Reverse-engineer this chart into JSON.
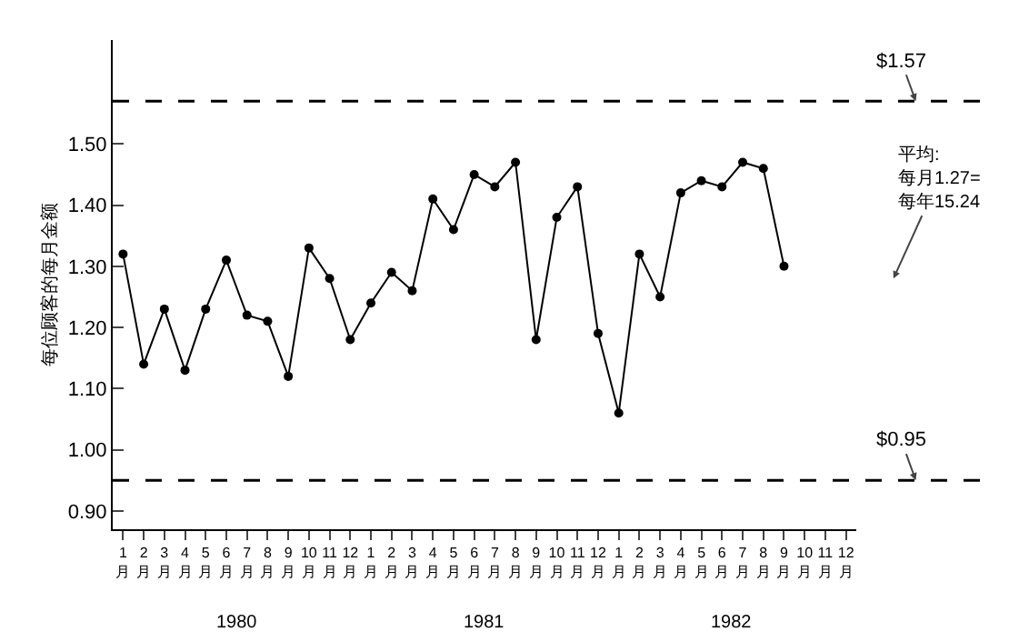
{
  "chart_data": {
    "type": "line",
    "ylabel": "每位顾客的每月金额",
    "categories": [
      "1月",
      "2月",
      "3月",
      "4月",
      "5月",
      "6月",
      "7月",
      "8月",
      "9月",
      "10月",
      "11月",
      "12月",
      "1月",
      "2月",
      "3月",
      "4月",
      "5月",
      "6月",
      "7月",
      "8月",
      "9月",
      "10月",
      "11月",
      "12月",
      "1月",
      "2月",
      "3月",
      "4月",
      "5月",
      "6月",
      "7月",
      "8月",
      "9月",
      "10月",
      "11月",
      "12月"
    ],
    "series": [
      {
        "color": "#000000",
        "values": [
          1.32,
          1.14,
          1.23,
          1.13,
          1.23,
          1.31,
          1.22,
          1.21,
          1.12,
          1.33,
          1.28,
          1.18,
          1.24,
          1.29,
          1.26,
          1.41,
          1.36,
          1.45,
          1.43,
          1.47,
          1.18,
          1.38,
          1.43,
          1.19,
          1.06,
          1.32,
          1.25,
          1.42,
          1.44,
          1.43,
          1.47,
          1.46,
          1.3,
          null,
          null,
          null
        ]
      }
    ],
    "ylim": [
      0.87,
      1.67
    ],
    "yticks": [
      {
        "value": 0.9,
        "label": "0.90"
      },
      {
        "value": 1.0,
        "label": "1.00"
      },
      {
        "value": 1.1,
        "label": "1.10"
      },
      {
        "value": 1.2,
        "label": "1.20"
      },
      {
        "value": 1.3,
        "label": "1.30"
      },
      {
        "value": 1.4,
        "label": "1.40"
      },
      {
        "value": 1.5,
        "label": "1.50"
      }
    ],
    "ref_lines": [
      {
        "axis": "y",
        "value": 1.57,
        "label": "$1.57",
        "color": "#000000",
        "line_style": "dashed"
      },
      {
        "axis": "y",
        "value": 0.95,
        "label": "$0.95",
        "color": "#000000",
        "line_style": "dashed"
      }
    ],
    "annotations": [
      "平均:\n每月1.27=\n每年15.24",
      "1980",
      "1981",
      "1982"
    ],
    "grid": false,
    "marker": "circle",
    "line_style": "solid"
  }
}
